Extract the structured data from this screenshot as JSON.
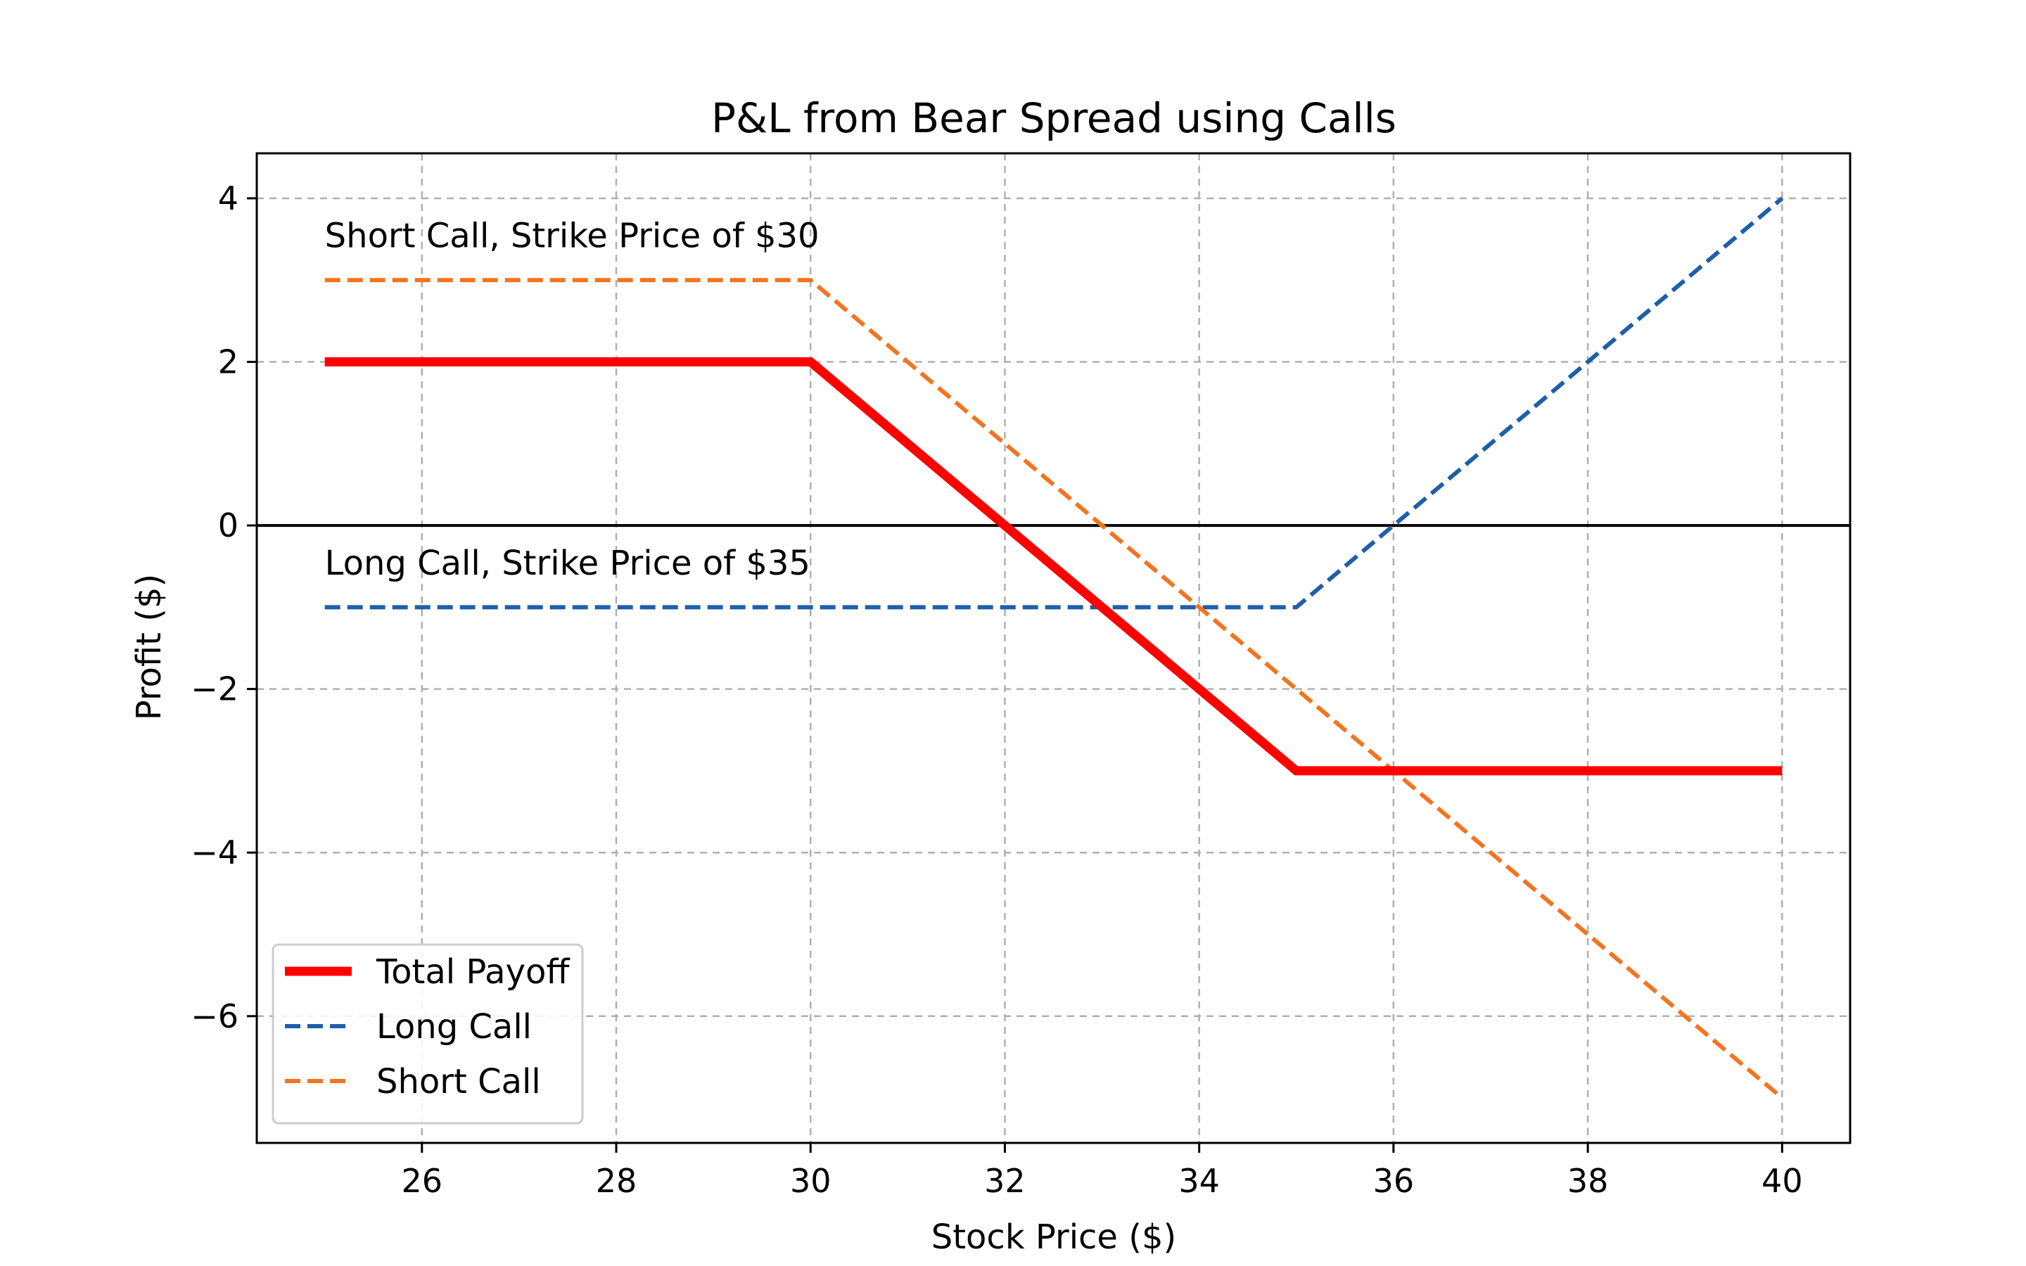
{
  "chart_data": {
    "type": "line",
    "title": "P&L from Bear Spread using Calls",
    "xlabel": "Stock Price ($)",
    "ylabel": "Profit ($)",
    "xlim": [
      24.3,
      40.7
    ],
    "ylim": [
      -7.55,
      4.55
    ],
    "x_ticks": [
      26,
      28,
      30,
      32,
      34,
      36,
      38,
      40
    ],
    "y_ticks": [
      -6,
      -4,
      -2,
      0,
      2,
      4
    ],
    "y_tick_labels": [
      "−6",
      "−4",
      "−2",
      "0",
      "2",
      "4"
    ],
    "grid": true,
    "zero_line": true,
    "legend_position": "lower-left",
    "series": [
      {
        "name": "Total Payoff",
        "color": "#ff0000",
        "style": "solid",
        "x": [
          25,
          30,
          35,
          40
        ],
        "y": [
          2,
          2,
          -3,
          -3
        ]
      },
      {
        "name": "Long Call",
        "color": "#1f5fa8",
        "style": "dashed",
        "x": [
          25,
          35,
          40
        ],
        "y": [
          -1,
          -1,
          4
        ]
      },
      {
        "name": "Short Call",
        "color": "#f4741f",
        "style": "dashed",
        "x": [
          25,
          30,
          40
        ],
        "y": [
          3,
          3,
          -7
        ]
      }
    ],
    "annotations": [
      {
        "text": "Short Call, Strike Price of $30",
        "x": 25,
        "y": 3.4
      },
      {
        "text": "Long Call, Strike Price of $35",
        "x": 25,
        "y": -0.6
      }
    ]
  }
}
